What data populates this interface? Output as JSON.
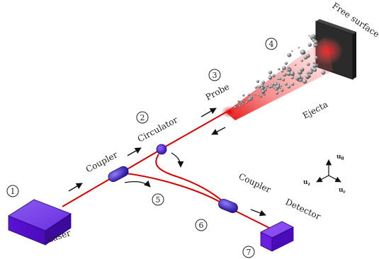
{
  "labels": {
    "laser": "Laser",
    "coupler_1": "Coupler",
    "circulator": "Circulator",
    "probe": "Probe",
    "ejecta": "Ejecta",
    "free_surface": "Free surface",
    "coupler_2": "Coupler",
    "detector": "Detector"
  },
  "markers": {
    "m1": "1",
    "m2": "2",
    "m3": "3",
    "m4": "4",
    "m5": "5",
    "m6": "6",
    "m7": "7"
  },
  "axes": {
    "u_theta": "u",
    "u_theta_sub": "θ",
    "u_z": "u",
    "u_z_sub": "z",
    "u_r": "u",
    "u_r_sub": "r"
  },
  "colors": {
    "fiber": "#d40000",
    "laser_box": "#5a12d6",
    "coupler": "#3b1fb0",
    "free_surface": "#2a2a2a"
  },
  "icons": [
    "arrow-icon",
    "curved-arrow-icon",
    "axis-triad-icon"
  ]
}
